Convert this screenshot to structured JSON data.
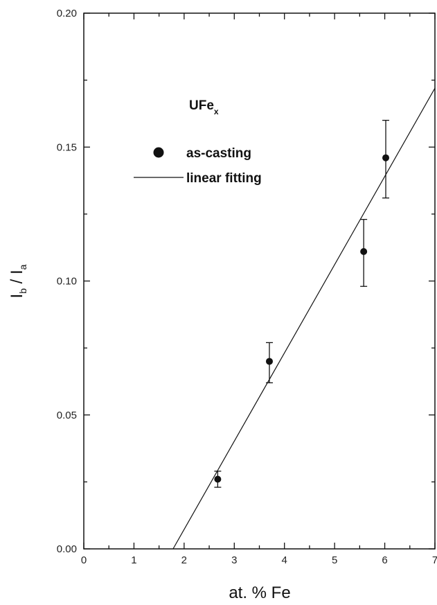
{
  "chart_data": {
    "type": "scatter",
    "title": "",
    "xlabel": "at. % Fe",
    "ylabel_main": "I",
    "ylabel_sub1": "b",
    "ylabel_mid": " / I",
    "ylabel_sub2": "a",
    "xlim": [
      0,
      7
    ],
    "ylim": [
      0,
      0.2
    ],
    "x_ticks": [
      "0",
      "1",
      "2",
      "3",
      "4",
      "5",
      "6",
      "7"
    ],
    "y_ticks": [
      "0.00",
      "0.05",
      "0.10",
      "0.15",
      "0.20"
    ],
    "annotation_main": "UFe",
    "annotation_sub": "x",
    "legend_position": "upper-left",
    "grid": false,
    "series": [
      {
        "name": "as-casting",
        "marker": "filled-circle",
        "points": [
          {
            "x": 2.67,
            "y": 0.026,
            "err_low": 0.023,
            "err_high": 0.029
          },
          {
            "x": 3.7,
            "y": 0.07,
            "err_low": 0.062,
            "err_high": 0.077
          },
          {
            "x": 5.58,
            "y": 0.111,
            "err_low": 0.098,
            "err_high": 0.123
          },
          {
            "x": 6.02,
            "y": 0.146,
            "err_low": 0.131,
            "err_high": 0.16
          }
        ]
      },
      {
        "name": "linear fitting",
        "line": {
          "x_start": 1.78,
          "y_start": 0.0,
          "x_end": 7.0,
          "y_end": 0.172
        }
      }
    ]
  }
}
